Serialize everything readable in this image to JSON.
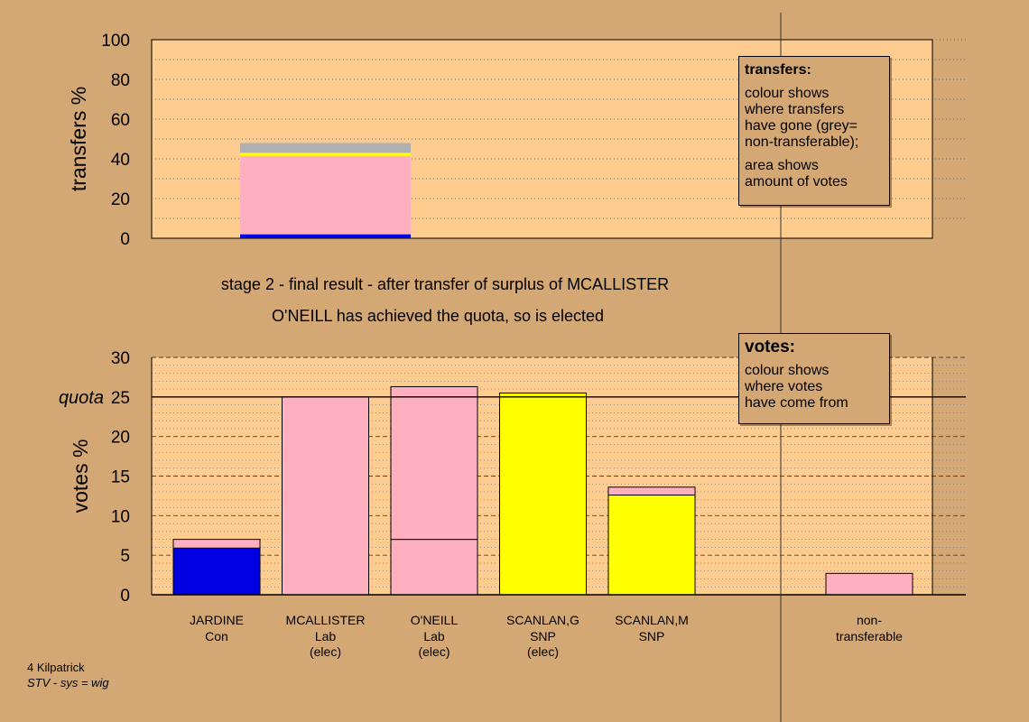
{
  "chart_data": [
    {
      "type": "bar",
      "stacked": true,
      "ylabel": "transfers %",
      "ylim": [
        0,
        100
      ],
      "yticks": [
        0,
        20,
        40,
        60,
        80,
        100
      ],
      "grid": true,
      "bars": [
        {
          "category": "MCALLISTER",
          "segments": [
            {
              "name": "JARDINE",
              "color": "#0000e0",
              "value": 2
            },
            {
              "name": "O'NEILL",
              "color": "#ffb0c0",
              "value": 39.5
            },
            {
              "name": "SCANLAN,M",
              "color": "#ffff00",
              "value": 1.5
            },
            {
              "name": "non-transferable",
              "color": "#b0b0b0",
              "value": 5
            }
          ]
        }
      ],
      "legend": {
        "title": "transfers:",
        "lines": [
          "colour shows",
          "where transfers",
          "have gone (grey=",
          "non-transferable);",
          "area shows",
          "amount of votes"
        ],
        "placement": "top-right"
      }
    },
    {
      "type": "bar",
      "stacked": true,
      "ylabel": "votes %",
      "ylim": [
        0,
        30
      ],
      "yticks": [
        0,
        5,
        10,
        15,
        20,
        25,
        30
      ],
      "quota": 25,
      "quota_label": "quota",
      "grid": true,
      "categories": [
        {
          "name": "JARDINE",
          "party": "Con",
          "status": ""
        },
        {
          "name": "MCALLISTER",
          "party": "Lab",
          "status": "(elec)"
        },
        {
          "name": "O'NEILL",
          "party": "Lab",
          "status": "(elec)"
        },
        {
          "name": "SCANLAN,G",
          "party": "SNP",
          "status": "(elec)"
        },
        {
          "name": "SCANLAN,M",
          "party": "SNP",
          "status": ""
        },
        {
          "name": "",
          "party": "",
          "status": ""
        },
        {
          "name": "non-",
          "party": "transferable",
          "status": ""
        }
      ],
      "bars": [
        {
          "segments": [
            {
              "color": "#0000e0",
              "value": 5.9
            },
            {
              "color": "#ffb0c0",
              "value": 1.1
            }
          ]
        },
        {
          "segments": [
            {
              "color": "#ffb0c0",
              "value": 25
            }
          ]
        },
        {
          "segments": [
            {
              "color": "#ffb0c0",
              "value": 7.0
            },
            {
              "color": "#ffb0c0",
              "value": 19.3
            }
          ]
        },
        {
          "segments": [
            {
              "color": "#ffff00",
              "value": 25.5
            }
          ]
        },
        {
          "segments": [
            {
              "color": "#ffff00",
              "value": 12.6
            },
            {
              "color": "#ffb0c0",
              "value": 1.0
            }
          ]
        },
        {
          "segments": []
        },
        {
          "segments": [
            {
              "color": "#ffb0c0",
              "value": 2.7
            }
          ]
        }
      ],
      "legend": {
        "title": "votes:",
        "lines": [
          "colour shows",
          "where votes",
          "have come from"
        ],
        "placement": "top-right"
      }
    }
  ],
  "stage": {
    "line1": "stage 2 - final result - after transfer of surplus of MCALLISTER",
    "line2": "O'NEILL has achieved the quota, so is elected"
  },
  "footer": {
    "ward": "4 Kilpatrick",
    "system": "STV - sys = wig"
  }
}
